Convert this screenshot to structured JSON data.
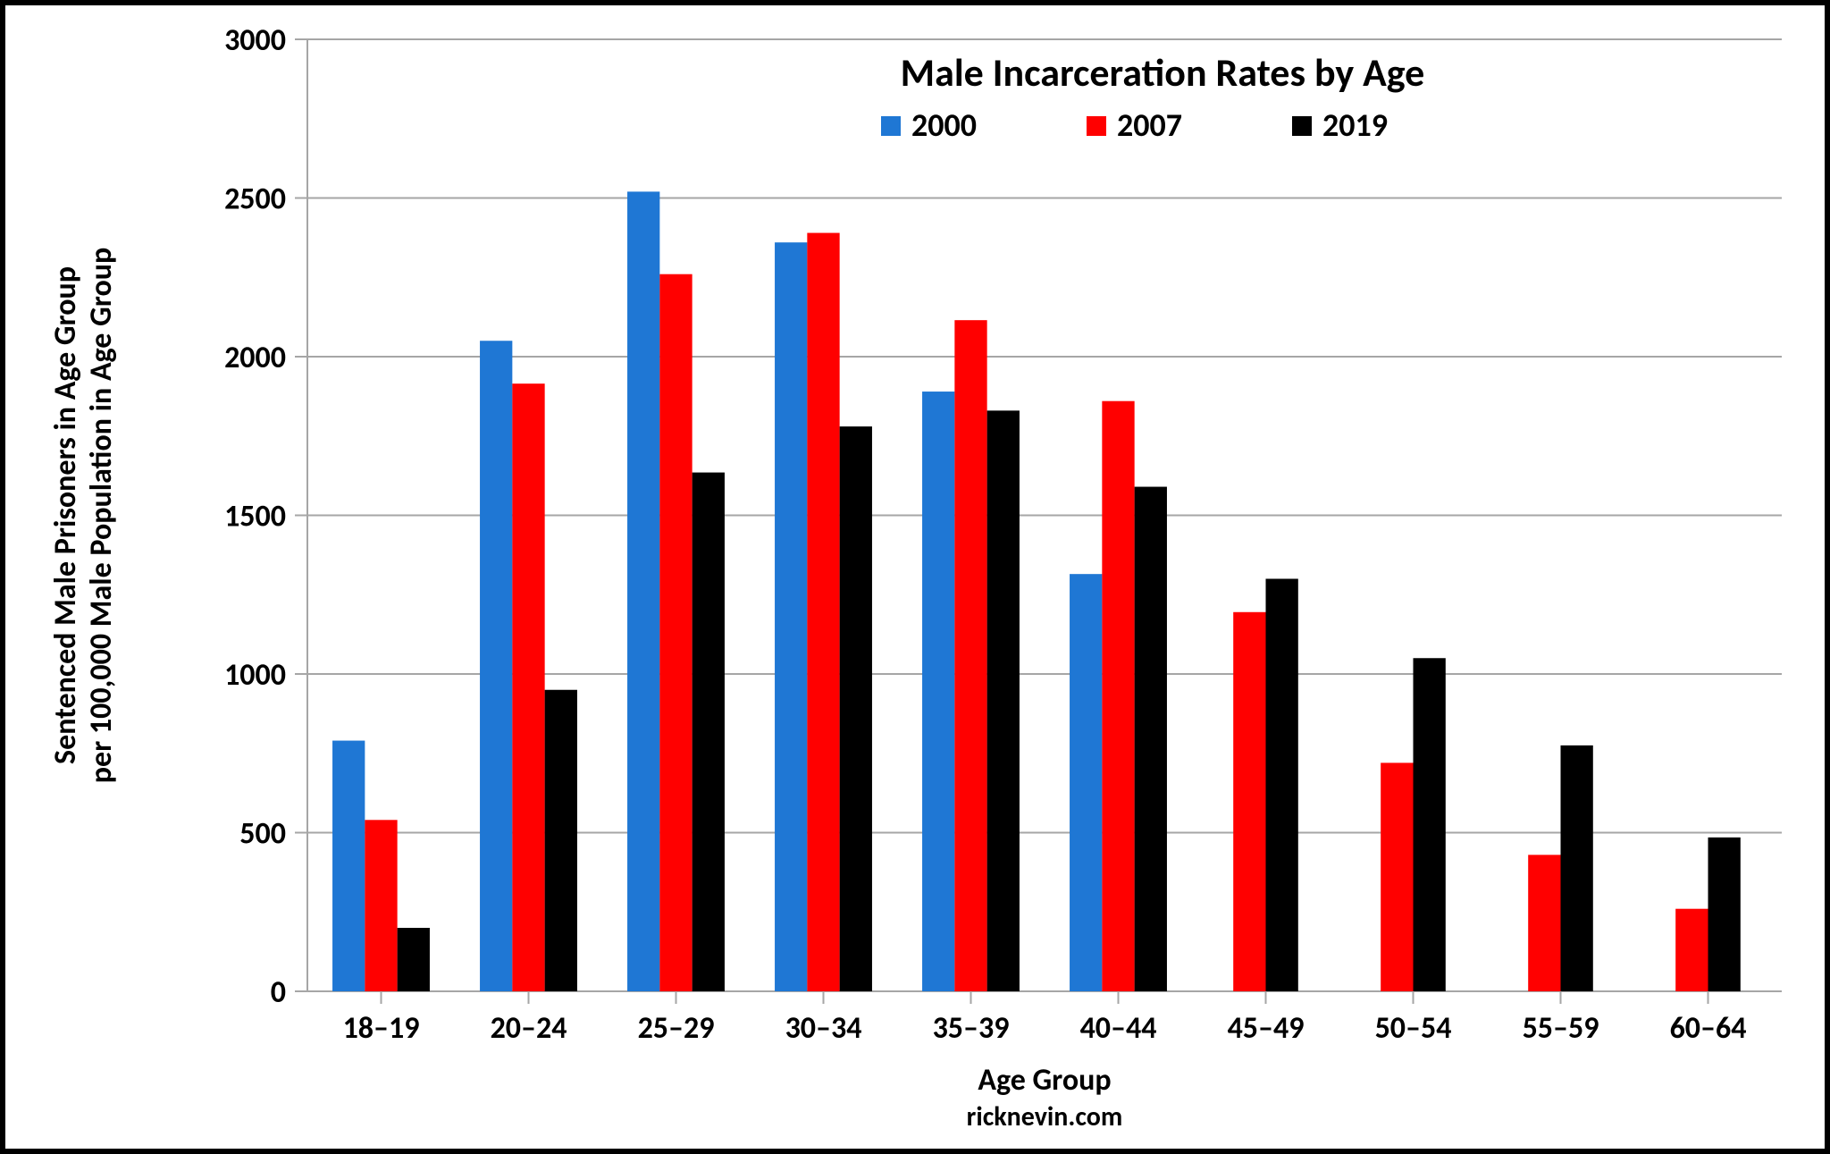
{
  "chart": {
    "type": "bar",
    "title": "Male Incarceration Rates by Age",
    "title_fontsize": 44,
    "y_axis": {
      "label_line1": "Sentenced Male Prisoners in Age Group",
      "label_line2": "per 100,000 Male Population in Age Group",
      "label_fontsize": 34,
      "ylim": [
        0,
        3000
      ],
      "ytick_step": 500,
      "ticks": [
        0,
        500,
        1000,
        1500,
        2000,
        2500,
        3000
      ]
    },
    "x_axis": {
      "label": "Age Group",
      "label_fontsize": 34,
      "categories": [
        "18–19",
        "20–24",
        "25–29",
        "30–34",
        "35–39",
        "40–44",
        "45–49",
        "50–54",
        "55–59",
        "60–64"
      ]
    },
    "series": [
      {
        "name": "2000",
        "color": "#1f77d4",
        "values": [
          790,
          2050,
          2520,
          2360,
          1890,
          1315,
          null,
          null,
          null,
          null
        ]
      },
      {
        "name": "2007",
        "color": "#ff0000",
        "values": [
          540,
          1915,
          2260,
          2390,
          2115,
          1860,
          1195,
          720,
          430,
          260
        ]
      },
      {
        "name": "2019",
        "color": "#000000",
        "values": [
          200,
          950,
          1635,
          1780,
          1830,
          1590,
          1300,
          1050,
          775,
          485
        ]
      }
    ],
    "legend": {
      "position": "top",
      "fontsize": 36,
      "marker_size": 22
    },
    "credit": "ricknevin.com",
    "background_color": "#ffffff",
    "grid_color": "#a6a6a6",
    "axis_line_color": "#a6a6a6",
    "tick_mark_color": "#a6a6a6",
    "bar_group_width_ratio": 0.66,
    "tick_fontsize": 34
  }
}
